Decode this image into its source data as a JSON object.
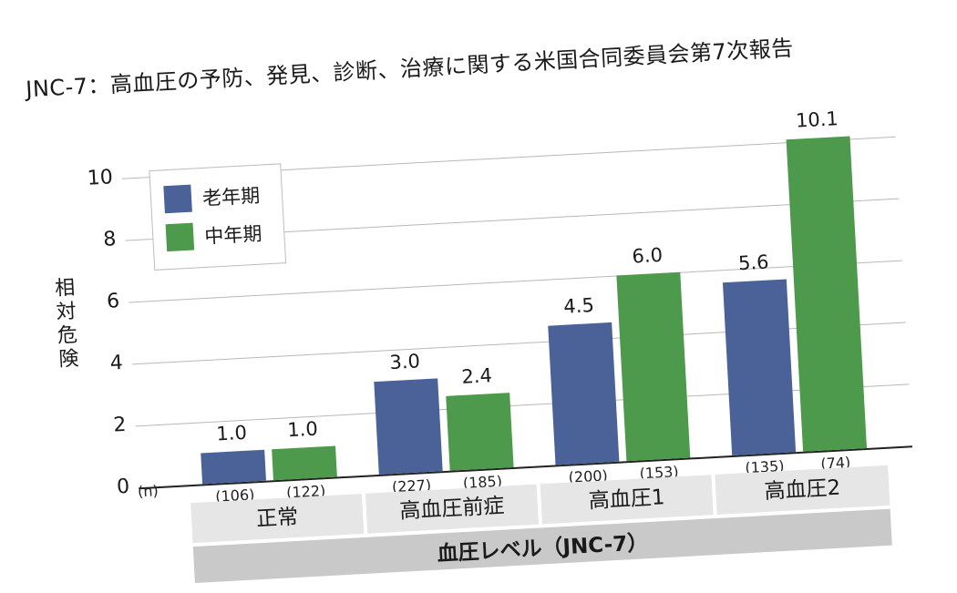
{
  "title": "JNC-7：高血圧の予防、発見、診断、治療に関する米国合同委員会第7次報告",
  "ylabel": "相対危険",
  "n_label": "(n)",
  "xlabel": "血圧レベル（JNC-7）",
  "legend": [
    {
      "name": "老年期",
      "color": "#4a6297"
    },
    {
      "name": "中年期",
      "color": "#4e9a4c"
    }
  ],
  "yticks": [
    "0",
    "2",
    "4",
    "6",
    "8",
    "10"
  ],
  "categories": [
    "正常",
    "高血圧前症",
    "高血圧1",
    "高血圧2"
  ],
  "value_labels": [
    "1.0",
    "1.0",
    "3.0",
    "2.4",
    "4.5",
    "6.0",
    "5.6",
    "10.1"
  ],
  "n_labels": [
    "(106)",
    "(122)",
    "(227)",
    "(185)",
    "(200)",
    "(153)",
    "(135)",
    "(74)"
  ],
  "chart_data": {
    "type": "bar",
    "title": "JNC-7：高血圧の予防、発見、診断、治療に関する米国合同委員会第7次報告",
    "xlabel": "血圧レベル（JNC-7）",
    "ylabel": "相対危険",
    "categories": [
      "正常",
      "高血圧前症",
      "高血圧1",
      "高血圧2"
    ],
    "series": [
      {
        "name": "老年期",
        "values": [
          1.0,
          3.0,
          4.5,
          5.6
        ],
        "n": [
          106,
          227,
          200,
          135
        ],
        "color": "#4a6297"
      },
      {
        "name": "中年期",
        "values": [
          1.0,
          2.4,
          6.0,
          10.1
        ],
        "n": [
          122,
          185,
          153,
          74
        ],
        "color": "#4e9a4c"
      }
    ],
    "ylim": [
      0,
      10.5
    ],
    "yticks": [
      0,
      2,
      4,
      6,
      8,
      10
    ],
    "grid": true,
    "legend_position": "upper left"
  }
}
